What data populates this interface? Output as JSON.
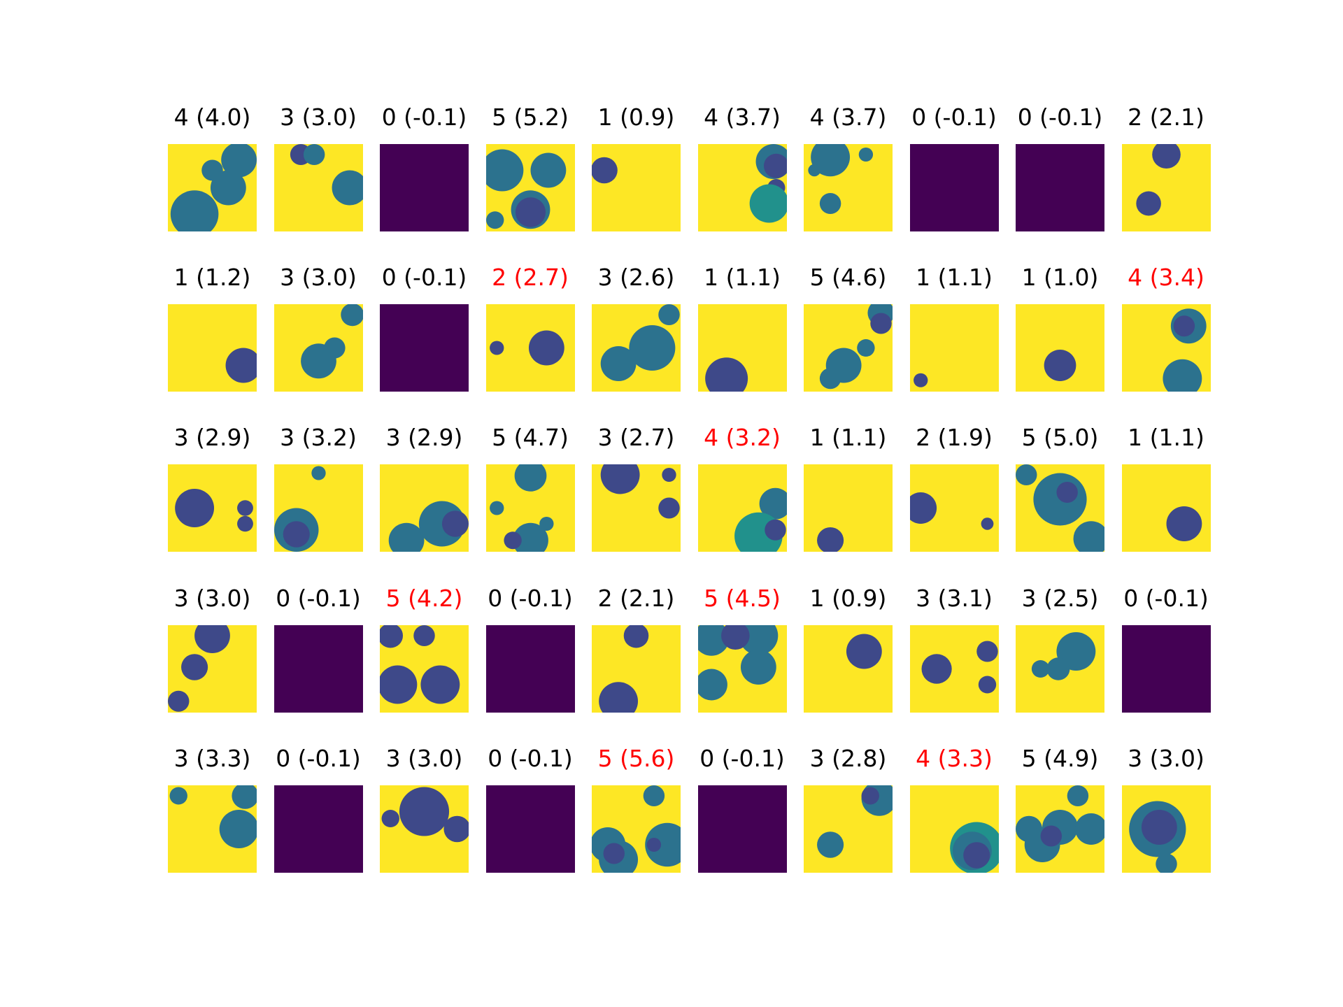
{
  "colors": {
    "correct_title": "#000000",
    "wrong_title": "#ff0000",
    "background": "#fde725",
    "empty": "#440154",
    "teal": "#2c728e",
    "blue": "#3e4989",
    "green": "#21918c"
  },
  "panels": [
    [
      {
        "t": "4 (4.0)",
        "w": false
      },
      {
        "t": "3 (3.0)",
        "w": false
      },
      {
        "t": "0 (-0.1)",
        "w": false
      },
      {
        "t": "5 (5.2)",
        "w": false
      },
      {
        "t": "1 (0.9)",
        "w": false
      },
      {
        "t": "4 (3.7)",
        "w": false
      },
      {
        "t": "4 (3.7)",
        "w": false
      },
      {
        "t": "0 (-0.1)",
        "w": false
      },
      {
        "t": "0 (-0.1)",
        "w": false
      },
      {
        "t": "2 (2.1)",
        "w": false
      }
    ],
    [
      {
        "t": "1 (1.2)",
        "w": false
      },
      {
        "t": "3 (3.0)",
        "w": false
      },
      {
        "t": "0 (-0.1)",
        "w": false
      },
      {
        "t": "2 (2.7)",
        "w": true
      },
      {
        "t": "3 (2.6)",
        "w": false
      },
      {
        "t": "1 (1.1)",
        "w": false
      },
      {
        "t": "5 (4.6)",
        "w": false
      },
      {
        "t": "1 (1.1)",
        "w": false
      },
      {
        "t": "1 (1.0)",
        "w": false
      },
      {
        "t": "4 (3.4)",
        "w": true
      }
    ],
    [
      {
        "t": "3 (2.9)",
        "w": false
      },
      {
        "t": "3 (3.2)",
        "w": false
      },
      {
        "t": "3 (2.9)",
        "w": false
      },
      {
        "t": "5 (4.7)",
        "w": false
      },
      {
        "t": "3 (2.7)",
        "w": false
      },
      {
        "t": "4 (3.2)",
        "w": true
      },
      {
        "t": "1 (1.1)",
        "w": false
      },
      {
        "t": "2 (1.9)",
        "w": false
      },
      {
        "t": "5 (5.0)",
        "w": false
      },
      {
        "t": "1 (1.1)",
        "w": false
      }
    ],
    [
      {
        "t": "3 (3.0)",
        "w": false
      },
      {
        "t": "0 (-0.1)",
        "w": false
      },
      {
        "t": "5 (4.2)",
        "w": true
      },
      {
        "t": "0 (-0.1)",
        "w": false
      },
      {
        "t": "2 (2.1)",
        "w": false
      },
      {
        "t": "5 (4.5)",
        "w": true
      },
      {
        "t": "1 (0.9)",
        "w": false
      },
      {
        "t": "3 (3.1)",
        "w": false
      },
      {
        "t": "3 (2.5)",
        "w": false
      },
      {
        "t": "0 (-0.1)",
        "w": false
      }
    ],
    [
      {
        "t": "3 (3.3)",
        "w": false
      },
      {
        "t": "0 (-0.1)",
        "w": false
      },
      {
        "t": "3 (3.0)",
        "w": false
      },
      {
        "t": "0 (-0.1)",
        "w": false
      },
      {
        "t": "5 (5.6)",
        "w": true
      },
      {
        "t": "0 (-0.1)",
        "w": false
      },
      {
        "t": "3 (2.8)",
        "w": false
      },
      {
        "t": "4 (3.3)",
        "w": true
      },
      {
        "t": "5 (4.9)",
        "w": false
      },
      {
        "t": "3 (3.0)",
        "w": false
      }
    ]
  ]
}
